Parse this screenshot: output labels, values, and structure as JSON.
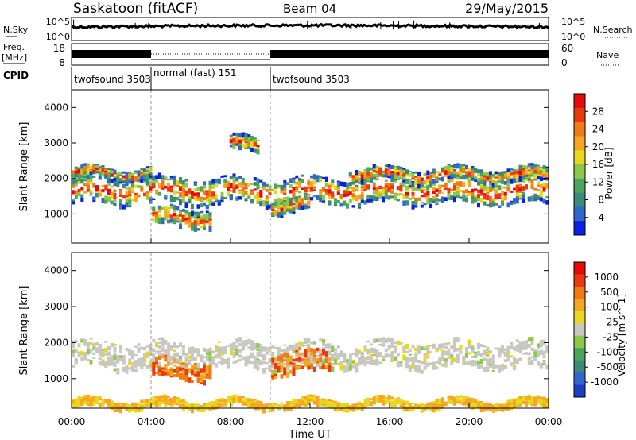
{
  "header": {
    "site": "Saskatoon (fitACF)",
    "beam": "Beam 04",
    "date": "29/May/2015"
  },
  "left_labels": {
    "nsky": "N.Sky",
    "freq_line1": "Freq.",
    "freq_line2": "[MHz]",
    "cpid": "CPID"
  },
  "right_labels": {
    "nsearch": "N.Search",
    "nave": "Nave"
  },
  "strip_ticks": {
    "noise_left_top": "10^5",
    "noise_left_bottom": "10^0",
    "noise_right_top": "10^5",
    "noise_right_bottom": "10^0",
    "freq_left_top": "18",
    "freq_left_bottom": "8",
    "nave_right_top": "60",
    "nave_right_bottom": "0"
  },
  "cpid_segments": [
    {
      "start_hour": 0,
      "end_hour": 4,
      "label": "twofsound 3503"
    },
    {
      "start_hour": 4,
      "end_hour": 10,
      "label": "normal (fast) 151"
    },
    {
      "start_hour": 10,
      "end_hour": 24,
      "label": "twofsound 3503"
    }
  ],
  "chart_data": [
    {
      "type": "heatmap",
      "panel": "power",
      "ylabel": "Slant Range [km]",
      "ylim": [
        180,
        4500
      ],
      "yticks": [
        1000,
        2000,
        3000,
        4000
      ],
      "xlim": [
        0,
        24
      ],
      "colorbar_label": "Power [dB]",
      "colorbar_ticks": [
        "28",
        "24",
        "20",
        "16",
        "12",
        "8",
        "4"
      ],
      "colorbar_colors": [
        "#0a1ee8",
        "#2f66cf",
        "#3b8a7a",
        "#4ca35d",
        "#8cc84a",
        "#e8d81c",
        "#f5a623",
        "#f07a14",
        "#e83a10",
        "#e80a0a"
      ],
      "echo_bands": [
        {
          "start_hour": 0,
          "end_hour": 24,
          "center_km": 1700,
          "width_km": 700
        },
        {
          "start_hour": 0,
          "end_hour": 4,
          "center_km": 2200,
          "width_km": 250
        },
        {
          "start_hour": 4,
          "end_hour": 7,
          "center_km": 950,
          "width_km": 500
        },
        {
          "start_hour": 8,
          "end_hour": 9.5,
          "center_km": 3000,
          "width_km": 400
        },
        {
          "start_hour": 10,
          "end_hour": 12,
          "center_km": 1300,
          "width_km": 400
        },
        {
          "start_hour": 14,
          "end_hour": 24,
          "center_km": 2150,
          "width_km": 350
        }
      ]
    },
    {
      "type": "heatmap",
      "panel": "velocity",
      "ylabel": "Slant Range [km]",
      "ylim": [
        180,
        4500
      ],
      "yticks": [
        1000,
        2000,
        3000,
        4000
      ],
      "xlim": [
        0,
        24
      ],
      "xlabel": "Time UT",
      "xticks": [
        "00:00",
        "04:00",
        "08:00",
        "12:00",
        "16:00",
        "20:00",
        "00:00"
      ],
      "colorbar_label": "Velocity [m s^-1]",
      "colorbar_ticks": [
        "1000",
        "500",
        "100",
        "25",
        "-25",
        "-100",
        "-500",
        "-1000"
      ],
      "colorbar_colors": [
        "#1a3fc4",
        "#2f66cf",
        "#3b8a7a",
        "#4ca35d",
        "#8cc84a",
        "#c8c8c0",
        "#e8d81c",
        "#f5a623",
        "#f07a14",
        "#e83a10",
        "#e80a0a"
      ],
      "echo_bands": [
        {
          "start_hour": 0,
          "end_hour": 24,
          "center_km": 1700,
          "width_km": 700
        },
        {
          "start_hour": 4,
          "end_hour": 7,
          "center_km": 1300,
          "width_km": 500
        },
        {
          "start_hour": 10,
          "end_hour": 13,
          "center_km": 1500,
          "width_km": 600
        },
        {
          "start_hour": 0,
          "end_hour": 24,
          "center_km": 350,
          "width_km": 200
        }
      ]
    }
  ]
}
